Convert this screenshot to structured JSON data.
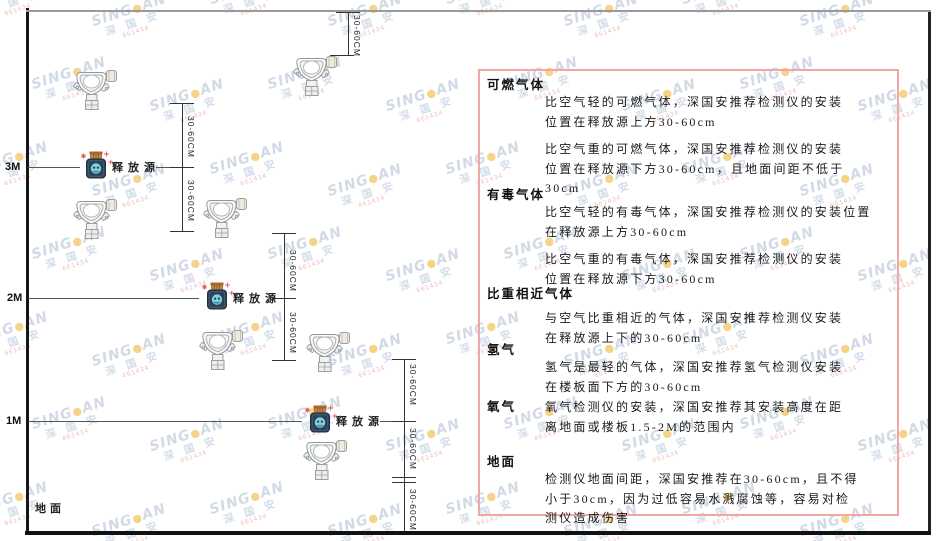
{
  "watermark": {
    "brand_prefix": "SING",
    "dot": "●",
    "brand_suffix": "AN",
    "cn": "深 国 安",
    "code": "661434",
    "brand_color": "#b5c3d6",
    "dot_color": "#f0b83e",
    "code_color": "#e09090"
  },
  "diagram": {
    "height_labels": [
      "3M",
      "2M",
      "1M"
    ],
    "ground_label": "地面",
    "release_source_label": "释放源",
    "dim_label": "30-60CM"
  },
  "panel": {
    "border_color": "#f3a6a6",
    "sections": [
      {
        "heading": "可燃气体",
        "paragraphs": [
          {
            "lines": [
              "比空气轻的可燃气体，深国安推荐检测仪的安装",
              "位置在释放源上方30-60cm"
            ]
          },
          {
            "lines": [
              "比空气重的可燃气体，深国安推荐检测仪的安装",
              "位置在释放源下方30-60cm，且地面间距不低于",
              "30cm"
            ]
          }
        ]
      },
      {
        "heading": "有毒气体",
        "paragraphs": [
          {
            "lines": [
              "比空气轻的有毒气体，深国安推荐检测仪的安装位置",
              "在释放源上方30-60cm"
            ]
          },
          {
            "lines": [
              "比空气重的有毒气体，深国安推荐检测仪的安装",
              "位置在释放源下方30-60cm"
            ]
          }
        ]
      },
      {
        "heading": "比重相近气体",
        "paragraphs": [
          {
            "lines": [
              "与空气比重相近的气体，深国安推荐检测仪安装",
              "在释放源上下的30-60cm"
            ]
          }
        ]
      },
      {
        "heading": "氢气",
        "paragraphs": [
          {
            "lines": [
              "氢气是最轻的气体，深国安推荐氢气检测仪安装",
              "在楼板面下方的30-60cm"
            ]
          }
        ]
      },
      {
        "heading": "氧气",
        "paragraphs": [
          {
            "lines": [
              "氧气检测仪的安装，深国安推荐其安装高度在距",
              "离地面或楼板1.5-2M的范围内"
            ]
          }
        ]
      },
      {
        "heading": "地面",
        "paragraphs": [
          {
            "lines": [
              "检测仪地面间距，深国安推荐在30-60cm，且不得",
              "小于30cm，因为过低容易水溅腐蚀等，容易对检",
              "测仪造成伤害"
            ]
          }
        ]
      }
    ]
  }
}
